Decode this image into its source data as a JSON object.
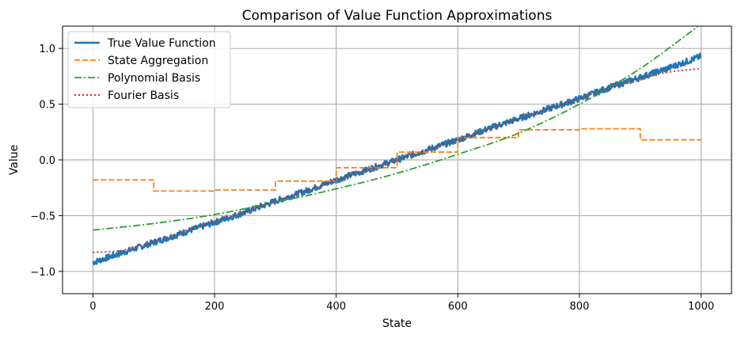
{
  "chart_data": {
    "type": "line",
    "title": "Comparison of Value Function Approximations",
    "xlabel": "State",
    "ylabel": "Value",
    "xlim": [
      -50,
      1050
    ],
    "ylim": [
      -1.2,
      1.2
    ],
    "xticks": [
      0,
      200,
      400,
      600,
      800,
      1000
    ],
    "xtick_labels": [
      "0",
      "200",
      "400",
      "600",
      "800",
      "1000"
    ],
    "yticks": [
      -1.0,
      -0.5,
      0.0,
      0.5,
      1.0
    ],
    "ytick_labels": [
      "−1.0",
      "−0.5",
      "0.0",
      "0.5",
      "1.0"
    ],
    "grid": true,
    "legend_position": "upper-left",
    "series": [
      {
        "name": "True Value Function",
        "style": "solid",
        "color": "#1f77b4",
        "x": [
          0,
          50,
          100,
          150,
          200,
          250,
          300,
          350,
          400,
          450,
          500,
          550,
          600,
          650,
          700,
          750,
          800,
          850,
          900,
          950,
          1000
        ],
        "y": [
          -0.92,
          -0.83,
          -0.74,
          -0.65,
          -0.56,
          -0.47,
          -0.37,
          -0.28,
          -0.18,
          -0.09,
          0.0,
          0.09,
          0.18,
          0.28,
          0.37,
          0.46,
          0.55,
          0.65,
          0.74,
          0.83,
          0.93
        ]
      },
      {
        "name": "State Aggregation",
        "style": "dashed",
        "color": "#ff7f0e",
        "x": [
          0,
          100,
          100,
          200,
          200,
          300,
          300,
          400,
          400,
          500,
          500,
          600,
          600,
          700,
          700,
          800,
          800,
          900,
          900,
          1000
        ],
        "y": [
          -0.18,
          -0.18,
          -0.28,
          -0.28,
          -0.27,
          -0.27,
          -0.19,
          -0.19,
          -0.07,
          -0.07,
          0.07,
          0.07,
          0.2,
          0.2,
          0.27,
          0.27,
          0.28,
          0.28,
          0.18,
          0.18
        ]
      },
      {
        "name": "Polynomial Basis",
        "style": "dashdot",
        "color": "#2ca02c",
        "x": [
          0,
          100,
          200,
          300,
          400,
          500,
          600,
          700,
          800,
          900,
          1000
        ],
        "y": [
          -0.63,
          -0.57,
          -0.49,
          -0.38,
          -0.26,
          -0.12,
          0.05,
          0.24,
          0.5,
          0.82,
          1.22
        ]
      },
      {
        "name": "Fourier Basis",
        "style": "dotted",
        "color": "#d62728",
        "x": [
          0,
          50,
          100,
          150,
          200,
          300,
          400,
          500,
          600,
          700,
          800,
          850,
          900,
          950,
          1000
        ],
        "y": [
          -0.83,
          -0.81,
          -0.73,
          -0.64,
          -0.55,
          -0.37,
          -0.18,
          0.0,
          0.18,
          0.37,
          0.55,
          0.65,
          0.73,
          0.79,
          0.82
        ]
      }
    ]
  }
}
